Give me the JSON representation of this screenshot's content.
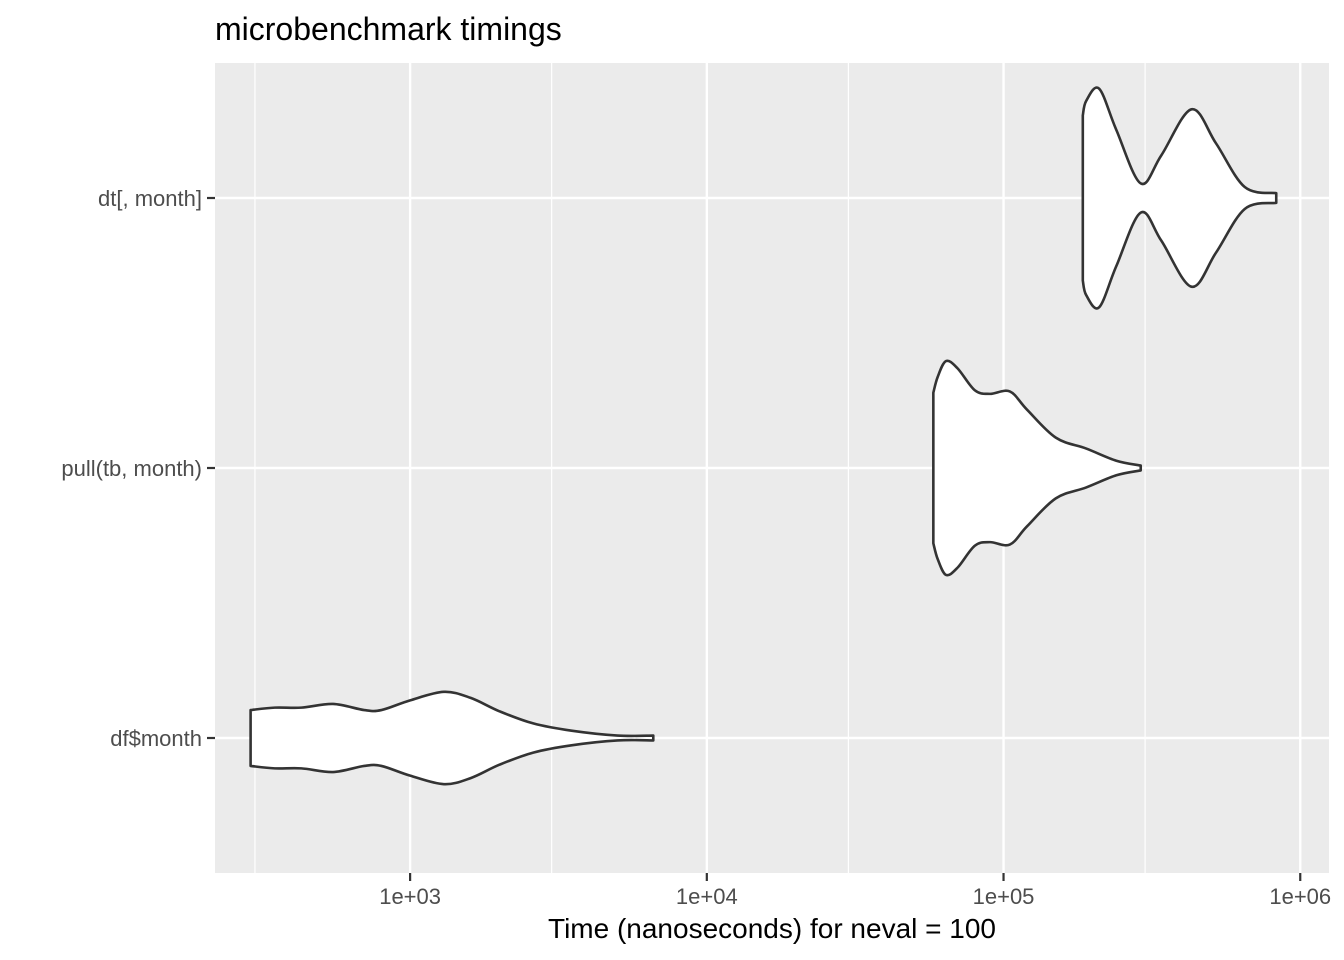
{
  "chart_data": {
    "type": "violin",
    "title": "microbenchmark timings",
    "xlabel": "Time (nanoseconds) for neval = 100",
    "ylabel": "",
    "x_scale": "log10",
    "xlim": [
      220,
      1250000
    ],
    "x_ticks": [
      {
        "value": 1000,
        "label": "1e+03"
      },
      {
        "value": 10000,
        "label": "1e+04"
      },
      {
        "value": 100000,
        "label": "1e+05"
      },
      {
        "value": 1000000,
        "label": "1e+06"
      }
    ],
    "x_minor": [
      300,
      3000,
      30000,
      300000
    ],
    "categories": [
      "df$month",
      "pull(tb, month)",
      "dt[, month]"
    ],
    "grid": true,
    "colors": {
      "panel": "#ebebeb",
      "grid": "#ffffff",
      "violin_fill": "#ffffff",
      "violin_stroke": "#333333",
      "axis_tick": "#333333"
    },
    "violins": [
      {
        "category": "df$month",
        "profile": [
          [
            290,
            0.23
          ],
          [
            350,
            0.25
          ],
          [
            430,
            0.25
          ],
          [
            550,
            0.28
          ],
          [
            700,
            0.23
          ],
          [
            800,
            0.23
          ],
          [
            1000,
            0.31
          ],
          [
            1300,
            0.38
          ],
          [
            1600,
            0.33
          ],
          [
            2000,
            0.22
          ],
          [
            2600,
            0.12
          ],
          [
            3500,
            0.06
          ],
          [
            5000,
            0.02
          ],
          [
            6600,
            0.02
          ]
        ]
      },
      {
        "category": "pull(tb, month)",
        "profile": [
          [
            58000,
            0.62
          ],
          [
            60000,
            0.75
          ],
          [
            64000,
            0.88
          ],
          [
            70000,
            0.82
          ],
          [
            80000,
            0.64
          ],
          [
            90000,
            0.61
          ],
          [
            105000,
            0.63
          ],
          [
            120000,
            0.48
          ],
          [
            150000,
            0.25
          ],
          [
            190000,
            0.16
          ],
          [
            240000,
            0.06
          ],
          [
            290000,
            0.02
          ]
        ]
      },
      {
        "category": "dt[, month]",
        "profile": [
          [
            185000,
            0.68
          ],
          [
            190000,
            0.8
          ],
          [
            210000,
            0.9
          ],
          [
            240000,
            0.56
          ],
          [
            290000,
            0.12
          ],
          [
            340000,
            0.35
          ],
          [
            430000,
            0.73
          ],
          [
            520000,
            0.45
          ],
          [
            650000,
            0.09
          ],
          [
            830000,
            0.04
          ]
        ]
      }
    ]
  }
}
